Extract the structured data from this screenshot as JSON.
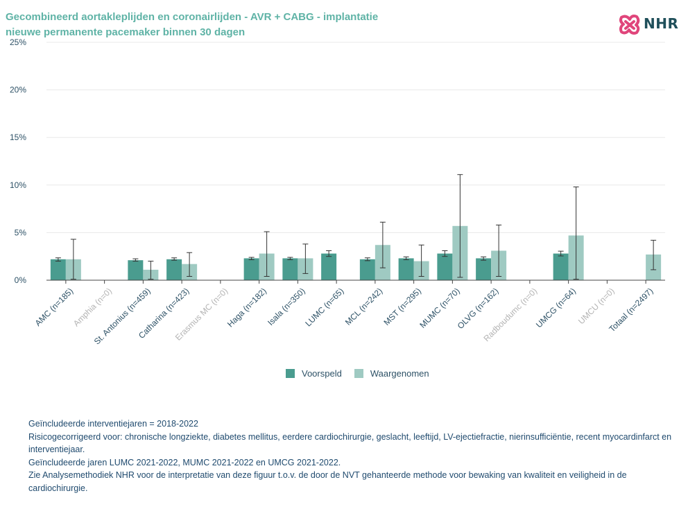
{
  "title": "Gecombineerd aortakleplijden en coronairlijden - AVR + CABG - implantatie nieuwe permanente pacemaker binnen 30 dagen",
  "logo": {
    "text": "NHR",
    "icon": "nhr-heart-logo-icon"
  },
  "colors": {
    "voorspeld": "#4a9c8f",
    "waargenomen": "#9fcac2",
    "title": "#5fb3a6",
    "axis_text": "#2d5166",
    "greyed": "#b3b3b3"
  },
  "legend": {
    "items": [
      "Voorspeld",
      "Waargenomen"
    ]
  },
  "chart_data": {
    "type": "bar",
    "ylim": [
      0,
      25
    ],
    "yticks": [
      "0%",
      "5%",
      "10%",
      "15%",
      "20%",
      "25%"
    ],
    "grid": true,
    "legend_position": "bottom",
    "categories": [
      "AMC (n=185)",
      "Amphia (n=0)",
      "St. Antonius (n=459)",
      "Catharina (n=423)",
      "Erasmus MC (n=0)",
      "Haga (n=182)",
      "Isala (n=350)",
      "LUMC (n=65)",
      "MCL (n=242)",
      "MST (n=295)",
      "MUMC (n=70)",
      "OLVG (n=162)",
      "Radboudumc (n=0)",
      "UMCG (n=64)",
      "UMCU (n=0)",
      "Totaal (n=2497)"
    ],
    "greyed": [
      false,
      true,
      false,
      false,
      true,
      false,
      false,
      false,
      false,
      false,
      false,
      false,
      true,
      false,
      true,
      false
    ],
    "series": [
      {
        "name": "Voorspeld",
        "values": [
          2.2,
          null,
          2.1,
          2.2,
          null,
          2.3,
          2.3,
          2.8,
          2.2,
          2.3,
          2.8,
          2.3,
          null,
          2.8,
          null,
          null
        ],
        "err_low": [
          2.0,
          null,
          2.0,
          2.1,
          null,
          2.15,
          2.15,
          2.5,
          2.05,
          2.15,
          2.5,
          2.1,
          null,
          2.55,
          null,
          null
        ],
        "err_high": [
          2.35,
          null,
          2.25,
          2.35,
          null,
          2.4,
          2.4,
          3.1,
          2.35,
          2.45,
          3.1,
          2.45,
          null,
          3.05,
          null,
          null
        ]
      },
      {
        "name": "Waargenomen",
        "values": [
          2.2,
          null,
          1.1,
          1.7,
          null,
          2.8,
          2.3,
          0.0,
          3.7,
          2.0,
          5.7,
          3.1,
          null,
          4.7,
          null,
          2.7
        ],
        "err_low": [
          0.1,
          null,
          0.1,
          0.4,
          null,
          0.4,
          0.7,
          0.0,
          1.3,
          0.4,
          0.3,
          0.4,
          null,
          0.1,
          null,
          1.1
        ],
        "err_high": [
          4.3,
          null,
          2.0,
          2.9,
          null,
          5.1,
          3.8,
          0.0,
          6.1,
          3.7,
          11.1,
          5.8,
          null,
          9.8,
          null,
          4.2
        ]
      }
    ]
  },
  "footnotes": [
    "Geïncludeerde interventiejaren = 2018-2022",
    "Risicogecorrigeerd voor: chronische longziekte, diabetes mellitus, eerdere cardiochirurgie, geslacht, leeftijd, LV-ejectiefractie, nierinsufficiëntie, recent myocardinfarct en interventiejaar.",
    "Geïncludeerde jaren LUMC 2021-2022, MUMC 2021-2022 en UMCG 2021-2022.",
    "Zie Analysemethodiek NHR voor de interpretatie van deze figuur t.o.v. de door de NVT gehanteerde methode voor bewaking van kwaliteit en veiligheid in de cardiochirurgie."
  ]
}
